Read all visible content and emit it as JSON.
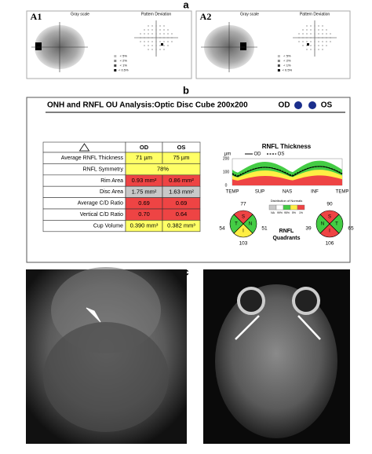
{
  "panel_a": {
    "label": "a",
    "fields": [
      {
        "id": "A1",
        "gray_scale": "Gray scale",
        "pattern_deviation": "Pattern Deviation"
      },
      {
        "id": "A2",
        "gray_scale": "Gray scale",
        "pattern_deviation": "Pattern Deviation"
      }
    ],
    "legend": [
      "< 5%",
      "< 2%",
      "< 1%",
      "< 0.5%"
    ]
  },
  "panel_b": {
    "label": "b",
    "title": "ONH and RNFL OU Analysis:Optic Disc Cube 200x200",
    "eyes": [
      "OD",
      "OS"
    ],
    "table": {
      "header": [
        "OD",
        "OS"
      ],
      "rows": [
        [
          "Average RNFL Thickness",
          "71 µm",
          "75 µm"
        ],
        [
          "RNFL Symmetry",
          "78%"
        ],
        [
          "Rim Area",
          "0.93 mm²",
          "0.86 mm²"
        ],
        [
          "Disc Area",
          "1.75 mm²",
          "1.63 mm²"
        ],
        [
          "Average C/D Ratio",
          "0.69",
          "0.69"
        ],
        [
          "Vertical C/D Ratio",
          "0.70",
          "0.64"
        ],
        [
          "Cup Volume",
          "0.390 mm³",
          "0.382 mm³"
        ]
      ]
    },
    "thickness": {
      "title": "RNFL Thickness",
      "unit": "µm",
      "legend": [
        "OD",
        "OS"
      ],
      "yticks": [
        "200",
        "100",
        "0"
      ],
      "xlabels": [
        "TEMP",
        "SUP",
        "NAS",
        "INF",
        "TEMP"
      ]
    },
    "distribution": {
      "title": "Distribution of Normals",
      "labels": [
        "NA",
        "99%",
        "95%",
        "5%",
        "1%"
      ]
    },
    "quadrants": {
      "title": [
        "RNFL",
        "Quadrants"
      ],
      "letters": [
        "S",
        "T",
        "N",
        "I"
      ],
      "od": {
        "S": "77",
        "T": "54",
        "N": "51",
        "I": "103"
      },
      "os": {
        "S": "90",
        "T": "65",
        "N": "39",
        "I": "106"
      }
    }
  },
  "panel_c": {
    "label": "c"
  }
}
